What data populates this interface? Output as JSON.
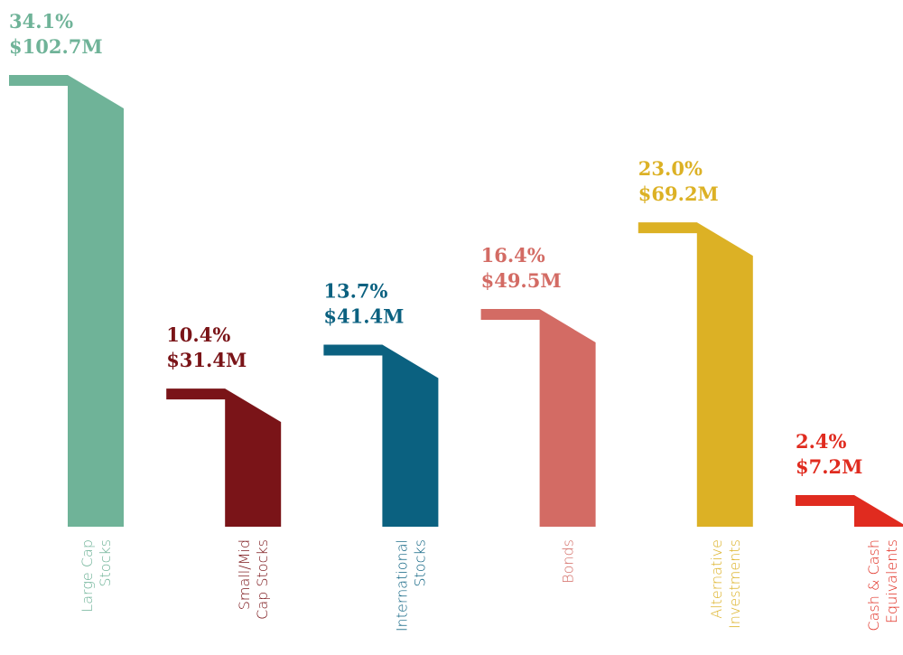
{
  "chart_data": {
    "type": "bar",
    "categories": [
      [
        "Large Cap",
        "Stocks"
      ],
      [
        "Small/Mid",
        "Cap Stocks"
      ],
      [
        "International",
        "Stocks"
      ],
      [
        "Bonds"
      ],
      [
        "Alternative",
        "Investments"
      ],
      [
        "Cash & Cash",
        "Equivalents"
      ]
    ],
    "values": [
      102.7,
      31.4,
      41.4,
      49.5,
      69.2,
      7.2
    ],
    "value_labels": [
      "$102.7M",
      "$31.4M",
      "$41.4M",
      "$49.5M",
      "$69.2M",
      "$7.2M"
    ],
    "shares": [
      34.1,
      10.4,
      13.7,
      16.4,
      23.0,
      2.4
    ],
    "share_labels": [
      "34.1%",
      "10.4%",
      "13.7%",
      "16.4%",
      "23.0%",
      "2.4%"
    ],
    "colors": [
      "#6fb398",
      "#7a1418",
      "#0b6180",
      "#d36b64",
      "#dcb125",
      "#e02b1f"
    ]
  }
}
